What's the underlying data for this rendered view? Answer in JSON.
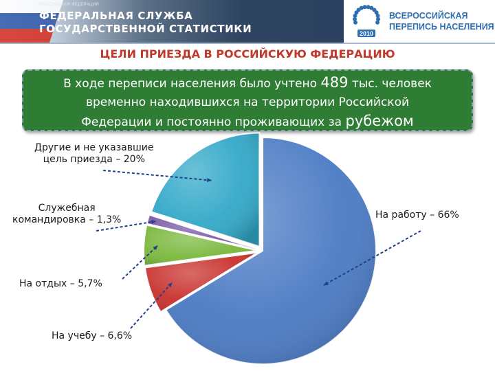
{
  "header": {
    "agency_small": "РОССИЙСКАЯ ФЕДЕРАЦИЯ",
    "agency_line1": "ФЕДЕРАЛЬНАЯ СЛУЖБА",
    "agency_line2": "ГОСУДАРСТВЕННОЙ СТАТИСТИКИ",
    "census_line1": "ВСЕРОССИЙСКАЯ",
    "census_line2": "ПЕРЕПИСЬ НАСЕЛЕНИЯ",
    "census_year": "2010",
    "flag_colors": [
      "#ffffff",
      "#2c55a8",
      "#d52b1e"
    ],
    "logo_color": "#2d6fb1"
  },
  "title": "ЦЕЛИ ПРИЕЗДА В РОССИЙСКУЮ ФЕДЕРАЦИЮ",
  "summary": {
    "line1_pre": "В ходе переписи населения было учтено ",
    "line1_number": "489",
    "line1_post": " тыс. человек",
    "line2": "временно находившихся на территории Российской",
    "line3_pre": "Федерации и постоянно проживающих за ",
    "line3_big": "рубежом"
  },
  "chart_data": {
    "type": "pie",
    "title": "",
    "start": "top",
    "direction": "clockwise",
    "style": "3d",
    "slices": [
      {
        "label_line1": "На работу – 66%",
        "label_line2": "",
        "value": 66,
        "color": "#4a7ac4"
      },
      {
        "label_line1": "На учебу – 6,6%",
        "label_line2": "",
        "value": 6.6,
        "color": "#c8302c"
      },
      {
        "label_line1": "На отдых – 5,7%",
        "label_line2": "",
        "value": 5.7,
        "color": "#7ab83c"
      },
      {
        "label_line1": "Служебная",
        "label_line2": "командировка – 1,3%",
        "value": 1.3,
        "color": "#7a5aa6"
      },
      {
        "label_line1": "Другие и не указавшие",
        "label_line2": "цель приезда – 20%",
        "value": 20,
        "color": "#32a8c8"
      }
    ]
  }
}
